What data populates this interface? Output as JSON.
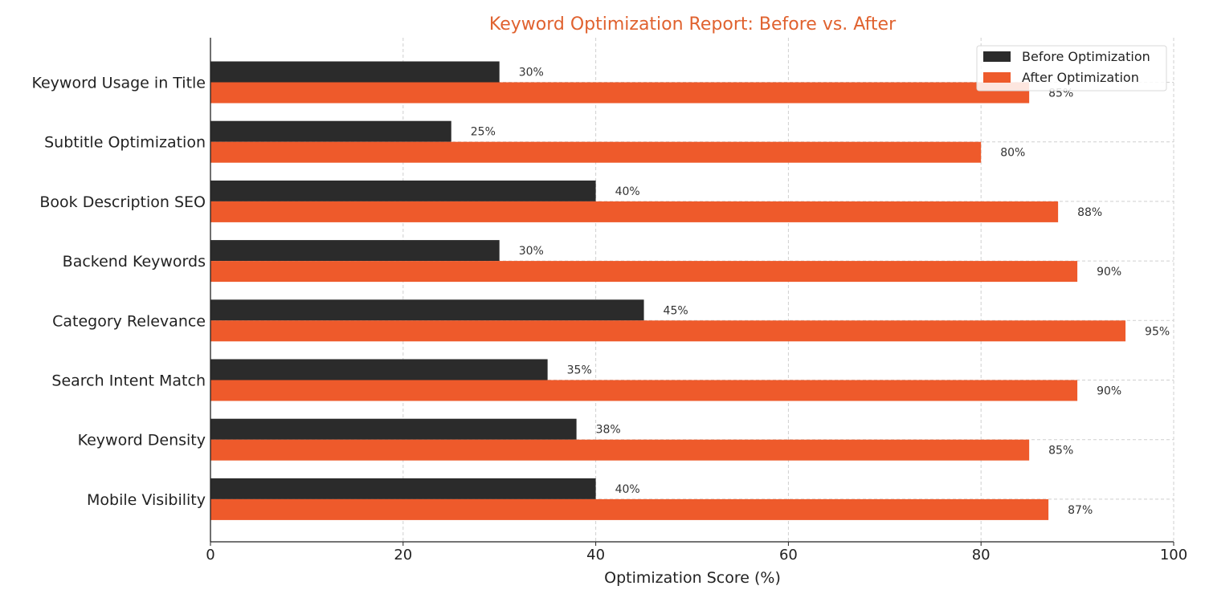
{
  "chart_data": {
    "type": "bar",
    "orientation": "horizontal",
    "title": "Keyword Optimization Report: Before vs. After",
    "xlabel": "Optimization Score (%)",
    "ylabel": "",
    "xlim": [
      0,
      100
    ],
    "xticks": [
      0,
      20,
      40,
      60,
      80,
      100
    ],
    "grid": true,
    "legend_position": "top-right",
    "categories": [
      "Keyword Usage in Title",
      "Subtitle Optimization",
      "Book Description SEO",
      "Backend Keywords",
      "Category Relevance",
      "Search Intent Match",
      "Keyword Density",
      "Mobile Visibility"
    ],
    "series": [
      {
        "name": "Before Optimization",
        "color": "#2b2b2b",
        "values": [
          30,
          25,
          40,
          30,
          45,
          35,
          38,
          40
        ]
      },
      {
        "name": "After Optimization",
        "color": "#ee5a2b",
        "values": [
          85,
          80,
          88,
          90,
          95,
          90,
          85,
          87
        ]
      }
    ],
    "title_color": "#e0622f",
    "value_suffix": "%"
  }
}
